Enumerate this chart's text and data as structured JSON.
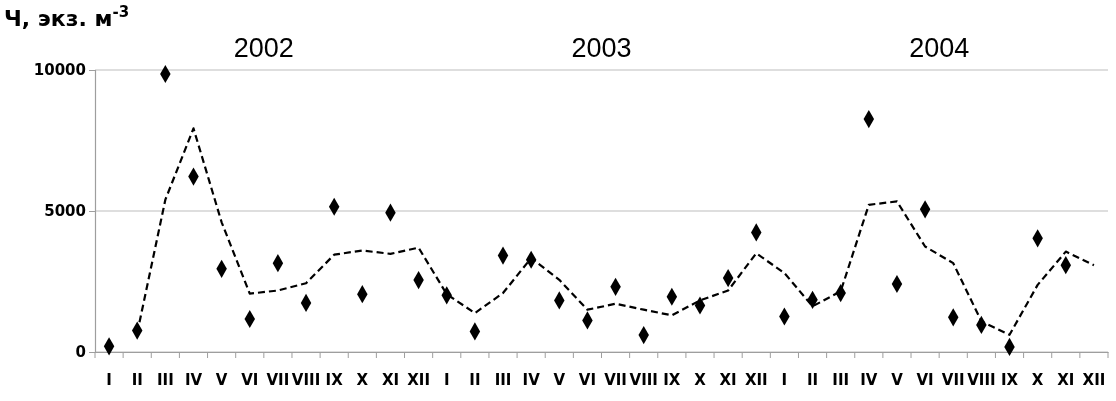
{
  "chart_data": {
    "type": "scatter",
    "ylabel": "Ч, экз. м$^{-3}$",
    "annotations": [
      "2002",
      "2003",
      "2004"
    ],
    "categories": [
      "I",
      "II",
      "III",
      "IV",
      "V",
      "VI",
      "VII",
      "VIII",
      "IX",
      "X",
      "XI",
      "XII",
      "I",
      "II",
      "III",
      "IV",
      "V",
      "VI",
      "VII",
      "VIII",
      "IX",
      "X",
      "XI",
      "XII",
      "I",
      "II",
      "III",
      "IV",
      "V",
      "VI",
      "VII",
      "VIII",
      "IX",
      "X",
      "XI",
      "XII"
    ],
    "ylim": [
      0,
      10000
    ],
    "yticks": [
      0,
      5000,
      10000
    ],
    "grid": "y",
    "series": [
      {
        "color": "#000000",
        "marker": "diamond",
        "values": [
          200,
          760,
          9860,
          6220,
          2950,
          1170,
          3150,
          1740,
          5150,
          2050,
          4940,
          2550,
          2010,
          730,
          3420,
          3270,
          1830,
          1120,
          2310,
          600,
          1960,
          1650,
          2620,
          4240,
          1260,
          1850,
          2090,
          8260,
          2410,
          5060,
          1230,
          960,
          180,
          4030,
          3080,
          null
        ]
      },
      {
        "type": "line",
        "color": "#000000",
        "line_style": "dashed",
        "values": [
          null,
          670,
          5400,
          7930,
          4600,
          2070,
          2180,
          2440,
          3450,
          3600,
          3480,
          3700,
          2050,
          1380,
          2090,
          3330,
          2560,
          1500,
          1710,
          1500,
          1300,
          1830,
          2180,
          3500,
          2800,
          1620,
          2150,
          5220,
          5340,
          3740,
          3150,
          1090,
          610,
          2380,
          3560,
          3080
        ]
      }
    ]
  }
}
